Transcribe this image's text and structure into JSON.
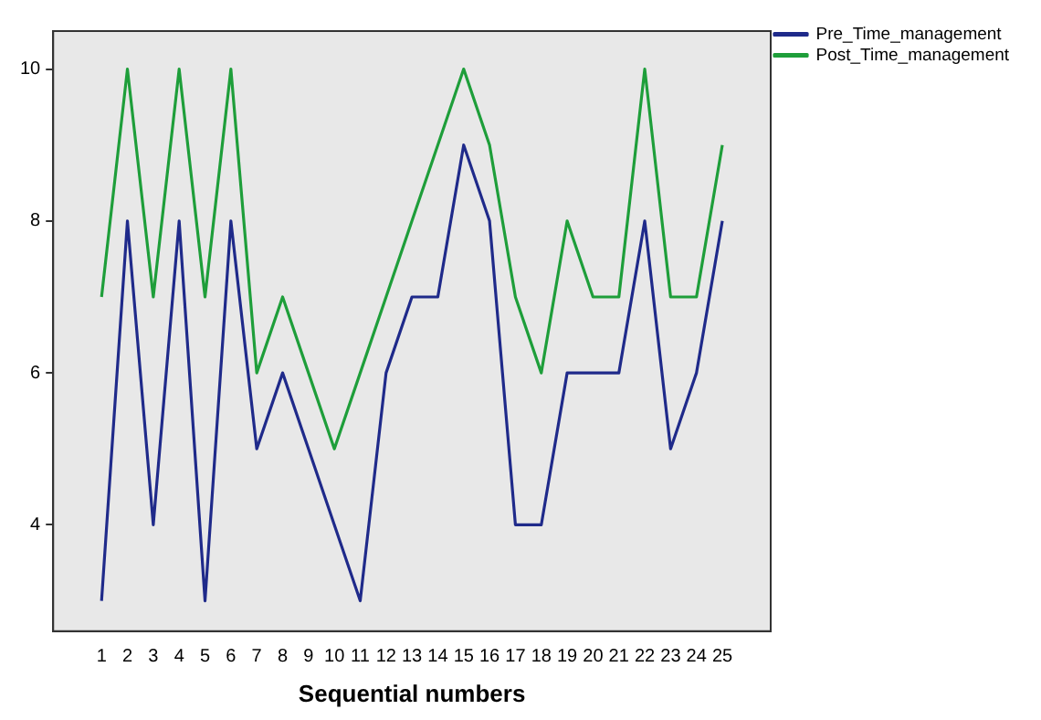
{
  "chart_data": {
    "type": "line",
    "xlabel": "Sequential numbers",
    "x": [
      1,
      2,
      3,
      4,
      5,
      6,
      7,
      8,
      9,
      10,
      11,
      12,
      13,
      14,
      15,
      16,
      17,
      18,
      19,
      20,
      21,
      22,
      23,
      24,
      25
    ],
    "series": [
      {
        "name": "Pre_Time_management",
        "color": "#1f2a8a",
        "values": [
          3,
          8,
          4,
          8,
          3,
          8,
          5,
          6,
          5,
          4,
          3,
          6,
          7,
          7,
          9,
          8,
          4,
          4,
          6,
          6,
          6,
          8,
          5,
          6,
          8
        ]
      },
      {
        "name": "Post_Time_management",
        "color": "#1e9e3a",
        "values": [
          7,
          10,
          7,
          10,
          7,
          10,
          6,
          7,
          6,
          5,
          6,
          7,
          8,
          9,
          10,
          9,
          7,
          6,
          8,
          7,
          7,
          10,
          7,
          7,
          9
        ]
      }
    ],
    "xlim": [
      -0.87,
      26.87
    ],
    "xticks": [
      1,
      2,
      3,
      4,
      5,
      6,
      7,
      8,
      9,
      10,
      11,
      12,
      13,
      14,
      15,
      16,
      17,
      18,
      19,
      20,
      21,
      22,
      23,
      24,
      25
    ],
    "ylim": [
      2.6,
      10.5
    ],
    "yticks": [
      4,
      6,
      8,
      10
    ],
    "grid": false,
    "legend": "top right",
    "marker": "none",
    "line_style": "solid"
  }
}
